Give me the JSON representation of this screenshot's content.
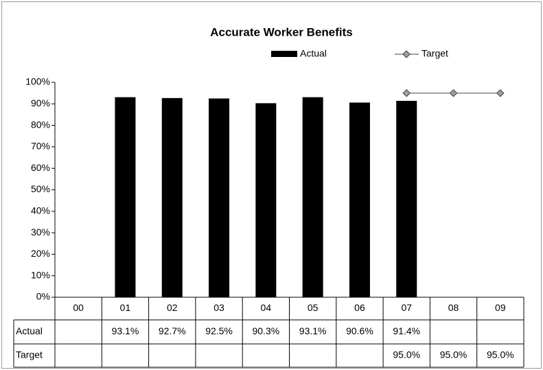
{
  "chart_data": {
    "type": "bar",
    "title": "Accurate Worker Benefits",
    "categories": [
      "00",
      "01",
      "02",
      "03",
      "04",
      "05",
      "06",
      "07",
      "08",
      "09"
    ],
    "series": [
      {
        "name": "Actual",
        "type": "bar",
        "color": "#000000",
        "values": [
          null,
          93.1,
          92.7,
          92.5,
          90.3,
          93.1,
          90.6,
          91.4,
          null,
          null
        ],
        "value_labels": [
          null,
          "93.1%",
          "92.7%",
          "92.5%",
          "90.3%",
          "93.1%",
          "90.6%",
          "91.4%",
          null,
          null
        ]
      },
      {
        "name": "Target",
        "type": "line",
        "color": "#808080",
        "values": [
          null,
          null,
          null,
          null,
          null,
          null,
          null,
          95.0,
          95.0,
          95.0
        ],
        "value_labels": [
          null,
          null,
          null,
          null,
          null,
          null,
          null,
          "95.0%",
          "95.0%",
          "95.0%"
        ]
      }
    ],
    "ylim": [
      0,
      100
    ],
    "yticks": [
      {
        "value": 0,
        "label": "0%"
      },
      {
        "value": 10,
        "label": "10%"
      },
      {
        "value": 20,
        "label": "20%"
      },
      {
        "value": 30,
        "label": "30%"
      },
      {
        "value": 40,
        "label": "40%"
      },
      {
        "value": 50,
        "label": "50%"
      },
      {
        "value": 60,
        "label": "60%"
      },
      {
        "value": 70,
        "label": "70%"
      },
      {
        "value": 80,
        "label": "80%"
      },
      {
        "value": 90,
        "label": "90%"
      },
      {
        "value": 100,
        "label": "100%"
      }
    ],
    "grid": false,
    "legend": "top",
    "data_table": true
  }
}
